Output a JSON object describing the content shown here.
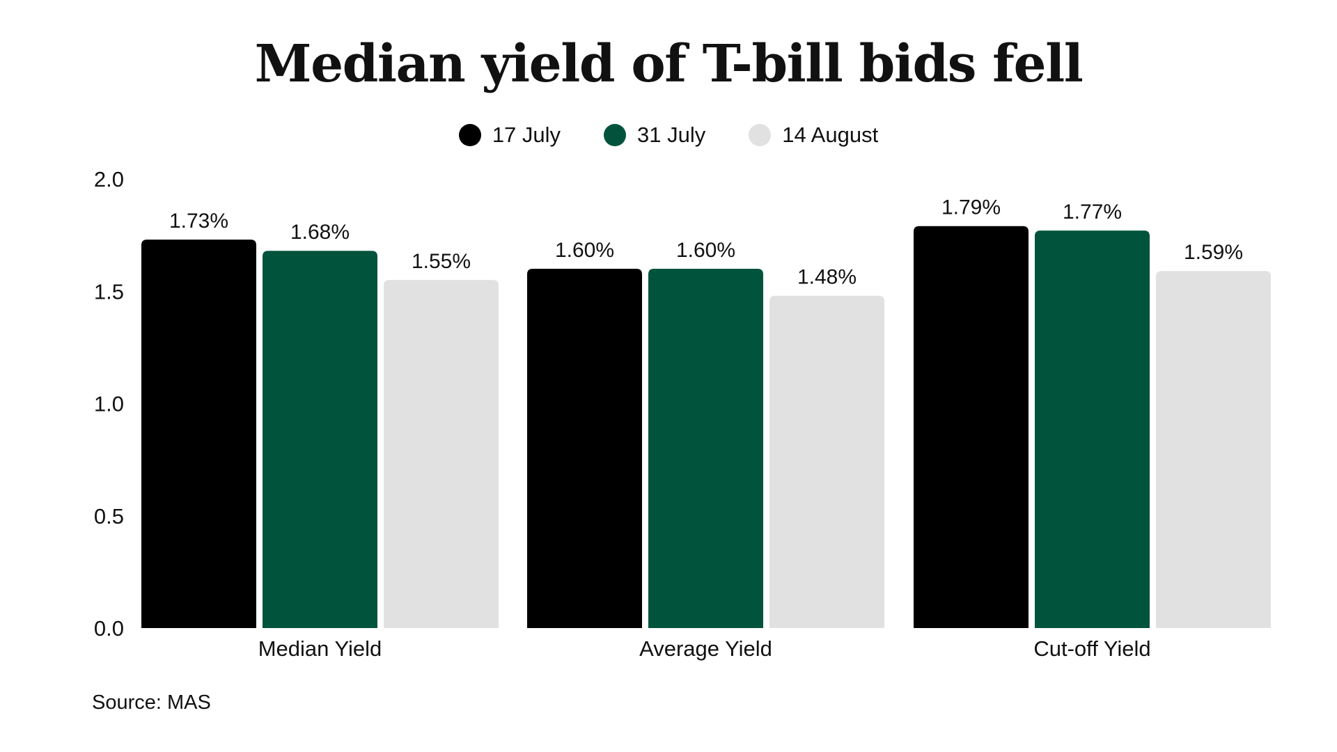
{
  "chart_data": {
    "type": "bar",
    "title": "Median yield of T-bill bids fell",
    "categories": [
      "Median Yield",
      "Average Yield",
      "Cut-off Yield"
    ],
    "series": [
      {
        "name": "17 July",
        "color": "#000000",
        "values": [
          1.73,
          1.6,
          1.79
        ],
        "labels": [
          "1.73%",
          "1.60%",
          "1.79%"
        ]
      },
      {
        "name": "31 July",
        "color": "#02533c",
        "values": [
          1.68,
          1.6,
          1.77
        ],
        "labels": [
          "1.68%",
          "1.60%",
          "1.77%"
        ]
      },
      {
        "name": "14 August",
        "color": "#e1e1e1",
        "values": [
          1.55,
          1.48,
          1.59
        ],
        "labels": [
          "1.55%",
          "1.48%",
          "1.59%"
        ]
      }
    ],
    "ylim": [
      0,
      2.0
    ],
    "yticks": [
      "0.0",
      "0.5",
      "1.0",
      "1.5",
      "2.0"
    ],
    "ytick_values": [
      0,
      0.5,
      1.0,
      1.5,
      2.0
    ],
    "xlabel": "",
    "ylabel": "",
    "grid": false,
    "legend_position": "top-center",
    "source": "Source: MAS"
  }
}
